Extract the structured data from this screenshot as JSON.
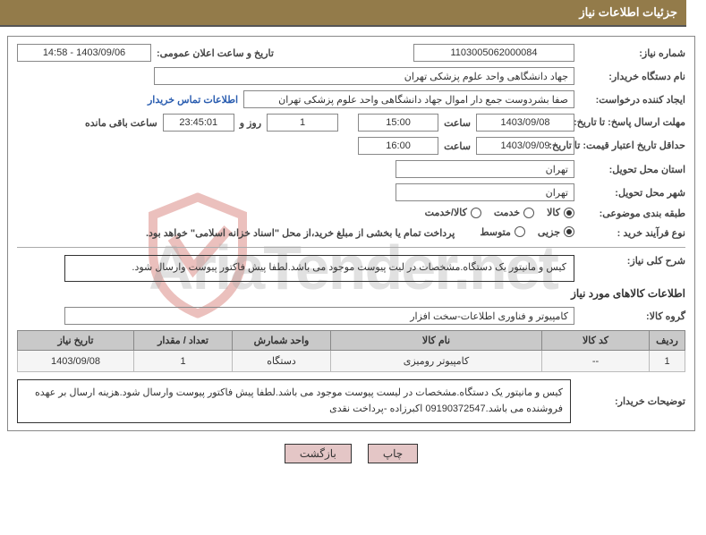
{
  "header": {
    "title": "جزئیات اطلاعات نیاز"
  },
  "watermark": {
    "text": "AriaTender.net",
    "shield_color": "#c23b2f"
  },
  "info": {
    "need_number": {
      "label": "شماره نیاز:",
      "value": "1103005062000084"
    },
    "announce_datetime": {
      "label": "تاریخ و ساعت اعلان عمومی:",
      "value": "1403/09/06 - 14:58"
    },
    "buyer_org": {
      "label": "نام دستگاه خریدار:",
      "value": "جهاد دانشگاهی واحد علوم پزشکی تهران"
    },
    "requester": {
      "label": "ایجاد کننده درخواست:",
      "value": "صفا بشردوست جمع دار اموال  جهاد دانشگاهی واحد علوم پزشکی تهران",
      "contact_link": "اطلاعات تماس خریدار"
    },
    "deadline": {
      "label": "مهلت ارسال پاسخ: تا تاریخ:",
      "date": "1403/09/08",
      "time_label": "ساعت",
      "time": "15:00",
      "days": "1",
      "days_label": "روز و",
      "remain": "23:45:01",
      "remain_label": "ساعت باقی مانده"
    },
    "validity": {
      "label": "حداقل تاریخ اعتبار قیمت: تا تاریخ:",
      "date": "1403/09/09",
      "time_label": "ساعت",
      "time": "16:00"
    },
    "province": {
      "label": "استان محل تحویل:",
      "value": "تهران"
    },
    "city": {
      "label": "شهر محل تحویل:",
      "value": "تهران"
    },
    "category": {
      "label": "طبقه بندی موضوعی:",
      "options": [
        {
          "label": "کالا",
          "checked": true
        },
        {
          "label": "خدمت",
          "checked": false
        },
        {
          "label": "کالا/خدمت",
          "checked": false
        }
      ]
    },
    "process": {
      "label": "نوع فرآیند خرید :",
      "options": [
        {
          "label": "جزیی",
          "checked": true
        },
        {
          "label": "متوسط",
          "checked": false
        }
      ],
      "note": "پرداخت تمام یا بخشی از مبلغ خرید،از محل \"اسناد خزانه اسلامی\" خواهد بود."
    }
  },
  "general_desc": {
    "label": "شرح کلی نیاز:",
    "value": "کیس و مانیتور یک دستگاه.مشخصات در لیت پیوست موجود می باشد.لطفا پیش فاکتور پیوست وارسال شود."
  },
  "goods_section": {
    "title": "اطلاعات کالاهای مورد نیاز",
    "group_label": "گروه کالا:",
    "group_value": "کامپیوتر و فناوری اطلاعات-سخت افزار"
  },
  "table": {
    "columns": [
      "ردیف",
      "کد کالا",
      "نام کالا",
      "واحد شمارش",
      "تعداد / مقدار",
      "تاریخ نیاز"
    ],
    "widths": [
      "40px",
      "120px",
      "auto",
      "110px",
      "110px",
      "130px"
    ],
    "rows": [
      [
        "1",
        "--",
        "کامپیوتر رومیزی",
        "دستگاه",
        "1",
        "1403/09/08"
      ]
    ]
  },
  "buyer_notes": {
    "label": "توضیحات خریدار:",
    "value": "کیس و مانیتور یک دستگاه.مشخصات در لیست پیوست موجود می باشد.لطفا پیش فاکتور پیوست وارسال شود.هزینه ارسال بر عهده فروشنده می باشد.09190372547 اکبرزاده -پرداخت نقدی"
  },
  "buttons": {
    "print": "چاپ",
    "back": "بازگشت"
  },
  "colors": {
    "header_bg": "#937b4a",
    "border": "#888",
    "th_bg": "#c9c9c9",
    "td_bg": "#f5f5f5",
    "btn_bg": "#e4c6c6",
    "link": "#2a5db0"
  }
}
